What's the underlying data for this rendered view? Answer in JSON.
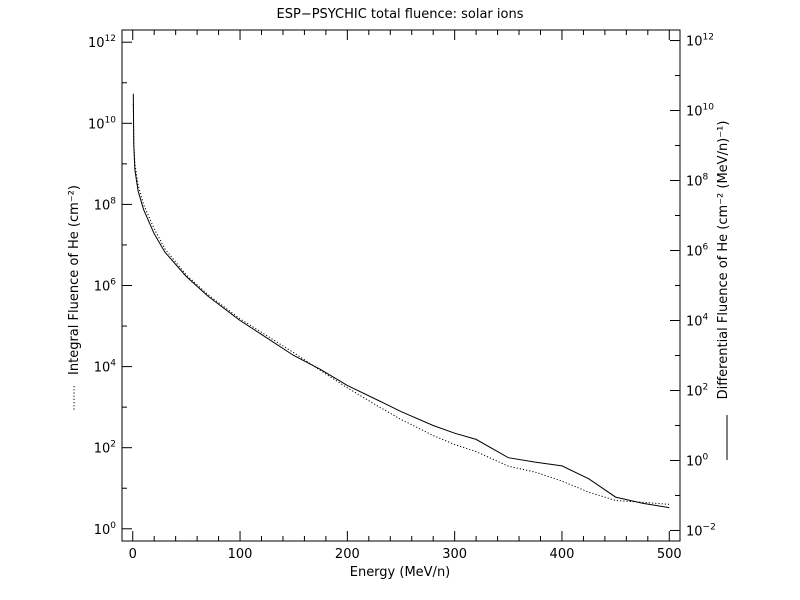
{
  "chart_data": {
    "type": "line",
    "title": "ESP−PSYCHIC total fluence: solar ions",
    "xlabel": "Energy (MeV/n)",
    "ylabel_left": "Integral Fluence of He (cm⁻²)",
    "ylabel_right": "Differential Fluence of He (cm⁻² (MeV/n)⁻¹)",
    "xlim": [
      -10,
      510
    ],
    "ylim_left": [
      0.5,
      2000000000000.0
    ],
    "ylim_right": [
      0.005,
      2000000000000.0
    ],
    "yscale": "log",
    "x_ticks": [
      "0",
      "100",
      "200",
      "300",
      "400",
      "500"
    ],
    "y_ticks_left": [
      {
        "base": "10",
        "exp": "0"
      },
      {
        "base": "10",
        "exp": "2"
      },
      {
        "base": "10",
        "exp": "4"
      },
      {
        "base": "10",
        "exp": "6"
      },
      {
        "base": "10",
        "exp": "8"
      },
      {
        "base": "10",
        "exp": "10"
      },
      {
        "base": "10",
        "exp": "12"
      }
    ],
    "y_ticks_right": [
      {
        "base": "10",
        "exp": "−2"
      },
      {
        "base": "10",
        "exp": "0"
      },
      {
        "base": "10",
        "exp": "2"
      },
      {
        "base": "10",
        "exp": "4"
      },
      {
        "base": "10",
        "exp": "6"
      },
      {
        "base": "10",
        "exp": "8"
      },
      {
        "base": "10",
        "exp": "10"
      },
      {
        "base": "10",
        "exp": "12"
      }
    ],
    "grid": false,
    "legend": "line-style samples beside each y-axis label (dotted = integral, left; solid = differential, right)",
    "series": [
      {
        "axis": "left",
        "style": "dotted",
        "x": [
          0.5,
          1,
          2,
          5,
          10,
          20,
          30,
          50,
          70,
          100,
          120,
          150,
          175,
          200,
          230,
          250,
          280,
          300,
          320,
          350,
          375,
          400,
          425,
          450,
          475,
          500
        ],
        "y": [
          30000000000.0,
          3000000000.0,
          1000000000.0,
          300000000.0,
          100000000.0,
          25000000.0,
          8000000.0,
          1800000.0,
          600000.0,
          150000.0,
          70000.0,
          22000.0,
          8000.0,
          3000.0,
          1000.0,
          500,
          200,
          120,
          80,
          35,
          25,
          15,
          8,
          5,
          4.5,
          4
        ]
      },
      {
        "axis": "right",
        "style": "solid",
        "x": [
          0.5,
          1,
          2,
          5,
          10,
          20,
          30,
          50,
          70,
          100,
          120,
          150,
          175,
          200,
          230,
          250,
          280,
          300,
          320,
          350,
          375,
          400,
          425,
          450,
          475,
          500
        ],
        "y": [
          30000000000.0,
          1000000000.0,
          200000000.0,
          50000000.0,
          15000000.0,
          3000000.0,
          900000.0,
          180000.0,
          50000.0,
          10000.0,
          4000.0,
          1000.0,
          400,
          140,
          50,
          25,
          10,
          6,
          4,
          1.2,
          0.9,
          0.7,
          0.3,
          0.09,
          0.06,
          0.045
        ]
      }
    ]
  }
}
